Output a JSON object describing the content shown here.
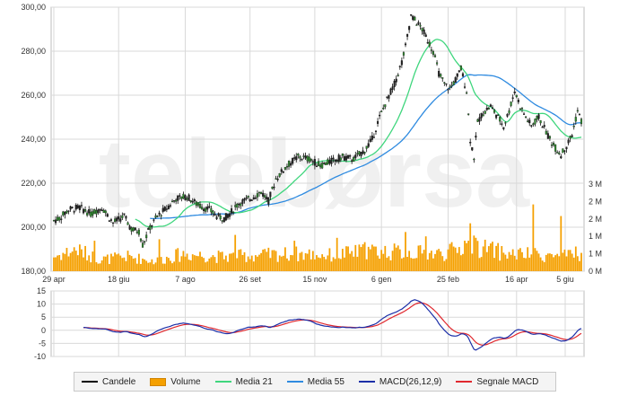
{
  "chart_data": [
    {
      "type": "candlestick",
      "title": "",
      "y_ticks": [
        "300,00",
        "280,00",
        "260,00",
        "240,00",
        "220,00",
        "200,00",
        "180,00"
      ],
      "ylim": [
        180,
        300
      ],
      "x_ticks": [
        "29 apr",
        "18 giu",
        "7 ago",
        "26 set",
        "15 nov",
        "6 gen",
        "25 feb",
        "16 apr",
        "5 giu"
      ],
      "volume_ticks": [
        "3 M",
        "2 M",
        "2 M",
        "1 M",
        "1 M",
        "0 M"
      ],
      "volume_max": 3,
      "grid": true,
      "watermark": "telebørsa",
      "price_anchors": [
        {
          "t": 0,
          "v": 203
        },
        {
          "t": 3,
          "v": 204
        },
        {
          "t": 8,
          "v": 208
        },
        {
          "t": 14,
          "v": 209
        },
        {
          "t": 20,
          "v": 206
        },
        {
          "t": 26,
          "v": 209
        },
        {
          "t": 32,
          "v": 202
        },
        {
          "t": 38,
          "v": 205
        },
        {
          "t": 42,
          "v": 199
        },
        {
          "t": 46,
          "v": 198
        },
        {
          "t": 48,
          "v": 192
        },
        {
          "t": 52,
          "v": 200
        },
        {
          "t": 56,
          "v": 205
        },
        {
          "t": 60,
          "v": 208
        },
        {
          "t": 66,
          "v": 213
        },
        {
          "t": 72,
          "v": 214
        },
        {
          "t": 78,
          "v": 210
        },
        {
          "t": 84,
          "v": 208
        },
        {
          "t": 88,
          "v": 205
        },
        {
          "t": 92,
          "v": 204
        },
        {
          "t": 96,
          "v": 207
        },
        {
          "t": 100,
          "v": 211
        },
        {
          "t": 106,
          "v": 213
        },
        {
          "t": 112,
          "v": 216
        },
        {
          "t": 116,
          "v": 212
        },
        {
          "t": 120,
          "v": 222
        },
        {
          "t": 126,
          "v": 228
        },
        {
          "t": 132,
          "v": 232
        },
        {
          "t": 138,
          "v": 231
        },
        {
          "t": 144,
          "v": 228
        },
        {
          "t": 150,
          "v": 230
        },
        {
          "t": 156,
          "v": 232
        },
        {
          "t": 162,
          "v": 231
        },
        {
          "t": 168,
          "v": 235
        },
        {
          "t": 172,
          "v": 240
        },
        {
          "t": 176,
          "v": 250
        },
        {
          "t": 180,
          "v": 258
        },
        {
          "t": 184,
          "v": 265
        },
        {
          "t": 188,
          "v": 275
        },
        {
          "t": 190,
          "v": 282
        },
        {
          "t": 193,
          "v": 296
        },
        {
          "t": 196,
          "v": 293
        },
        {
          "t": 199,
          "v": 290
        },
        {
          "t": 202,
          "v": 285
        },
        {
          "t": 205,
          "v": 280
        },
        {
          "t": 208,
          "v": 270
        },
        {
          "t": 211,
          "v": 265
        },
        {
          "t": 214,
          "v": 263
        },
        {
          "t": 217,
          "v": 267
        },
        {
          "t": 220,
          "v": 272
        },
        {
          "t": 223,
          "v": 262
        },
        {
          "t": 225,
          "v": 240
        },
        {
          "t": 227,
          "v": 232
        },
        {
          "t": 229,
          "v": 248
        },
        {
          "t": 232,
          "v": 252
        },
        {
          "t": 236,
          "v": 255
        },
        {
          "t": 240,
          "v": 250
        },
        {
          "t": 243,
          "v": 246
        },
        {
          "t": 246,
          "v": 253
        },
        {
          "t": 249,
          "v": 262
        },
        {
          "t": 252,
          "v": 255
        },
        {
          "t": 255,
          "v": 250
        },
        {
          "t": 258,
          "v": 246
        },
        {
          "t": 262,
          "v": 250
        },
        {
          "t": 265,
          "v": 245
        },
        {
          "t": 268,
          "v": 240
        },
        {
          "t": 271,
          "v": 236
        },
        {
          "t": 274,
          "v": 233
        },
        {
          "t": 277,
          "v": 237
        },
        {
          "t": 280,
          "v": 242
        },
        {
          "t": 283,
          "v": 253
        },
        {
          "t": 285,
          "v": 248
        }
      ],
      "volume_anchors": [
        {
          "t": 0,
          "v": 0.5
        },
        {
          "t": 12,
          "v": 0.75
        },
        {
          "t": 25,
          "v": 0.4
        },
        {
          "t": 40,
          "v": 0.5
        },
        {
          "t": 55,
          "v": 0.35
        },
        {
          "t": 70,
          "v": 0.6
        },
        {
          "t": 90,
          "v": 0.5
        },
        {
          "t": 110,
          "v": 0.55
        },
        {
          "t": 130,
          "v": 0.6
        },
        {
          "t": 150,
          "v": 0.55
        },
        {
          "t": 170,
          "v": 0.7
        },
        {
          "t": 190,
          "v": 0.65
        },
        {
          "t": 210,
          "v": 0.6
        },
        {
          "t": 225,
          "v": 0.9
        },
        {
          "t": 245,
          "v": 0.6
        },
        {
          "t": 265,
          "v": 0.55
        },
        {
          "t": 285,
          "v": 0.5
        }
      ],
      "volume_spikes": [
        {
          "t": 22,
          "v": 1.05
        },
        {
          "t": 57,
          "v": 1.1
        },
        {
          "t": 98,
          "v": 1.25
        },
        {
          "t": 130,
          "v": 1.05
        },
        {
          "t": 153,
          "v": 1.15
        },
        {
          "t": 168,
          "v": 1.0
        },
        {
          "t": 190,
          "v": 1.35
        },
        {
          "t": 201,
          "v": 1.2
        },
        {
          "t": 222,
          "v": 1.05
        },
        {
          "t": 225,
          "v": 1.65
        },
        {
          "t": 228,
          "v": 1.15
        },
        {
          "t": 259,
          "v": 2.3
        },
        {
          "t": 274,
          "v": 1.9
        },
        {
          "t": 282,
          "v": 0.85
        }
      ],
      "series": [
        {
          "name": "Candele",
          "color": "#000000"
        },
        {
          "name": "Volume",
          "color": "#f5a000"
        },
        {
          "name": "Media 21",
          "color": "#3fd67d"
        },
        {
          "name": "Media 55",
          "color": "#2f8be0"
        }
      ]
    },
    {
      "type": "line",
      "title": "",
      "y_ticks": [
        "15",
        "10",
        "5",
        "0",
        "-5",
        "-10"
      ],
      "ylim": [
        -10,
        15
      ],
      "grid": true,
      "series": [
        {
          "name": "MACD(26,12,9)",
          "color": "#1c2fa8"
        },
        {
          "name": "Segnale MACD",
          "color": "#e0282e"
        }
      ]
    }
  ],
  "legend": {
    "candles": "Candele",
    "volume": "Volume",
    "ma21": "Media 21",
    "ma55": "Media 55",
    "macd": "MACD(26,12,9)",
    "signal": "Segnale MACD"
  },
  "colors": {
    "candles": "#000000",
    "volume": "#f5a000",
    "ma21": "#3fd67d",
    "ma55": "#2f8be0",
    "macd": "#1c2fa8",
    "signal": "#e0282e",
    "grid": "#d9d9d9"
  }
}
